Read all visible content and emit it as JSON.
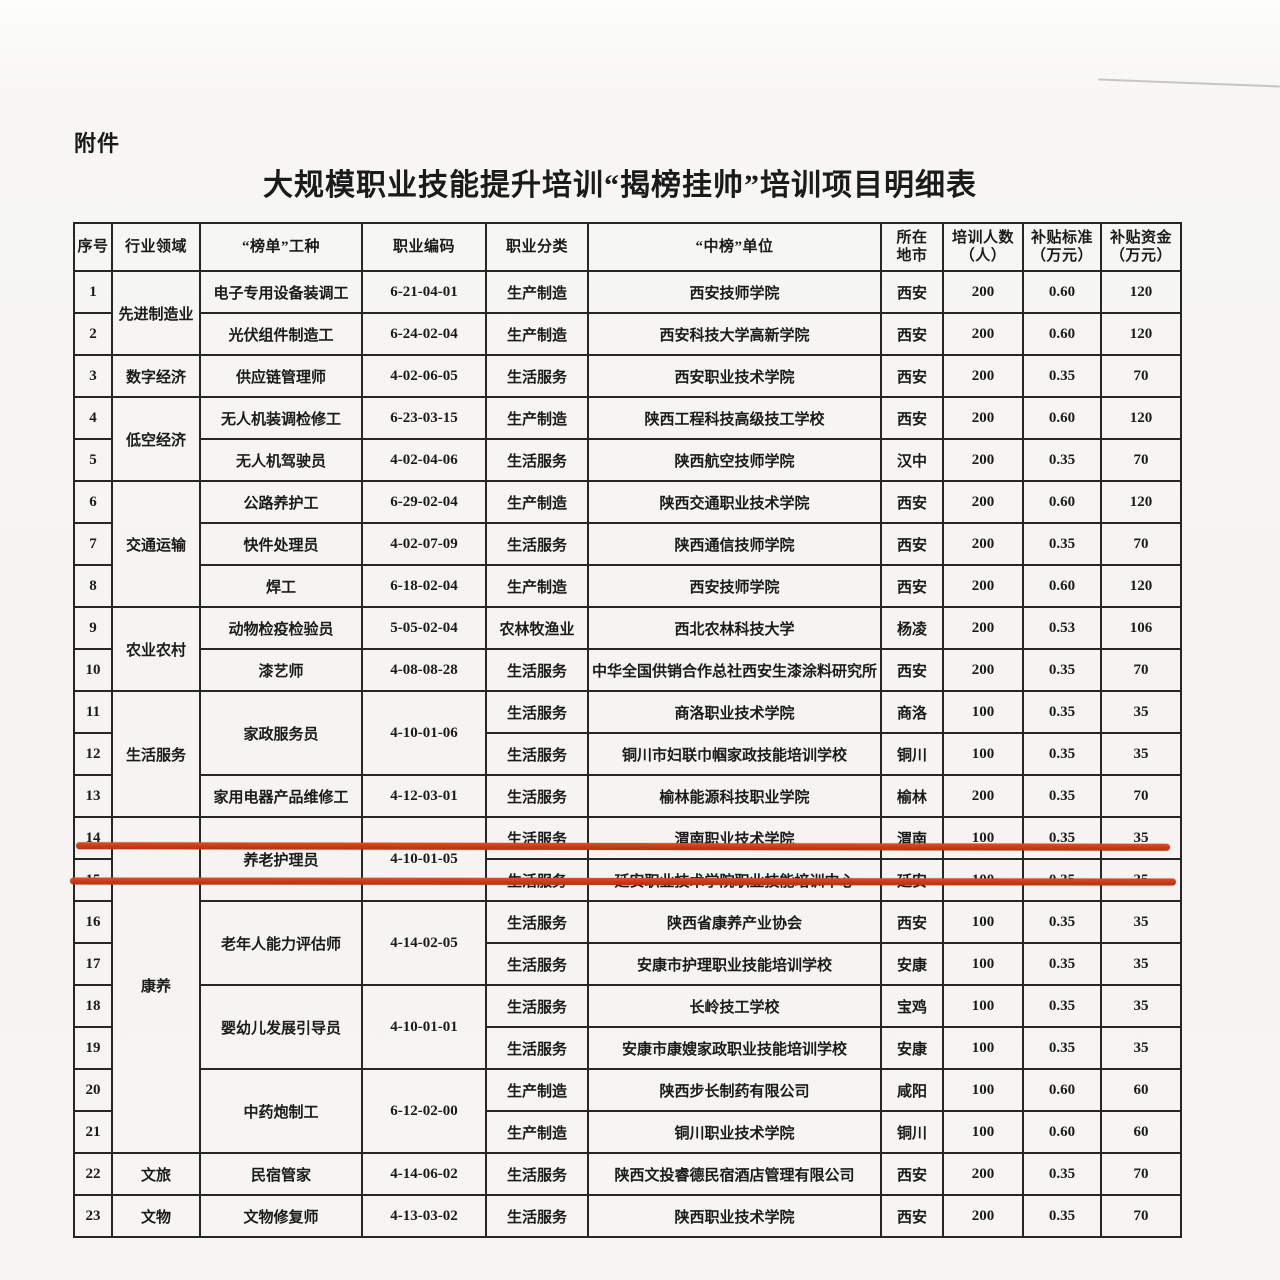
{
  "page": {
    "attachment_label": "附件",
    "title": "大规模职业技能提升培训“揭榜挂帅”培训项目明细表"
  },
  "annotation": {
    "highlight_color": "#c63a18",
    "highlighted_row_no": "14"
  },
  "table": {
    "headers": [
      "序号",
      "行业领域",
      "“榜单”工种",
      "职业编码",
      "职业分类",
      "“中榜”单位",
      "所在\n地市",
      "培训人数\n（人）",
      "补贴标准\n（万元）",
      "补贴资金\n（万元）"
    ],
    "rows": [
      [
        "1",
        {
          "t": "先进制造业",
          "rs": 2
        },
        "电子专用设备装调工",
        "6-21-04-01",
        "生产制造",
        "西安技师学院",
        "西安",
        "200",
        "0.60",
        "120"
      ],
      [
        "2",
        null,
        "光伏组件制造工",
        "6-24-02-04",
        "生产制造",
        "西安科技大学高新学院",
        "西安",
        "200",
        "0.60",
        "120"
      ],
      [
        "3",
        "数字经济",
        "供应链管理师",
        "4-02-06-05",
        "生活服务",
        "西安职业技术学院",
        "西安",
        "200",
        "0.35",
        "70"
      ],
      [
        "4",
        {
          "t": "低空经济",
          "rs": 2
        },
        "无人机装调检修工",
        "6-23-03-15",
        "生产制造",
        "陕西工程科技高级技工学校",
        "西安",
        "200",
        "0.60",
        "120"
      ],
      [
        "5",
        null,
        "无人机驾驶员",
        "4-02-04-06",
        "生活服务",
        "陕西航空技师学院",
        "汉中",
        "200",
        "0.35",
        "70"
      ],
      [
        "6",
        {
          "t": "交通运输",
          "rs": 3
        },
        "公路养护工",
        "6-29-02-04",
        "生产制造",
        "陕西交通职业技术学院",
        "西安",
        "200",
        "0.60",
        "120"
      ],
      [
        "7",
        null,
        "快件处理员",
        "4-02-07-09",
        "生活服务",
        "陕西通信技师学院",
        "西安",
        "200",
        "0.35",
        "70"
      ],
      [
        "8",
        null,
        "焊工",
        "6-18-02-04",
        "生产制造",
        "西安技师学院",
        "西安",
        "200",
        "0.60",
        "120"
      ],
      [
        "9",
        {
          "t": "农业农村",
          "rs": 2
        },
        "动物检疫检验员",
        "5-05-02-04",
        "农林牧渔业",
        "西北农林科技大学",
        "杨凌",
        "200",
        "0.53",
        "106"
      ],
      [
        "10",
        null,
        "漆艺师",
        "4-08-08-28",
        "生活服务",
        "中华全国供销合作总社西安生漆涂料研究所",
        "西安",
        "200",
        "0.35",
        "70"
      ],
      [
        "11",
        {
          "t": "生活服务",
          "rs": 3
        },
        {
          "t": "家政服务员",
          "rs": 2
        },
        {
          "t": "4-10-01-06",
          "rs": 2
        },
        "生活服务",
        "商洛职业技术学院",
        "商洛",
        "100",
        "0.35",
        "35"
      ],
      [
        "12",
        null,
        null,
        null,
        "生活服务",
        "铜川市妇联巾帼家政技能培训学校",
        "铜川",
        "100",
        "0.35",
        "35"
      ],
      [
        "13",
        null,
        "家用电器产品维修工",
        "4-12-03-01",
        "生活服务",
        "榆林能源科技职业学院",
        "榆林",
        "200",
        "0.35",
        "70"
      ],
      [
        "14",
        {
          "t": "康养",
          "rs": 8
        },
        {
          "t": "养老护理员",
          "rs": 2
        },
        {
          "t": "4-10-01-05",
          "rs": 2
        },
        "生活服务",
        "渭南职业技术学院",
        "渭南",
        "100",
        "0.35",
        "35"
      ],
      [
        "15",
        null,
        null,
        null,
        "生活服务",
        "延安职业技术学院职业技能培训中心",
        "延安",
        "100",
        "0.35",
        "35"
      ],
      [
        "16",
        null,
        {
          "t": "老年人能力评估师",
          "rs": 2
        },
        {
          "t": "4-14-02-05",
          "rs": 2
        },
        "生活服务",
        "陕西省康养产业协会",
        "西安",
        "100",
        "0.35",
        "35"
      ],
      [
        "17",
        null,
        null,
        null,
        "生活服务",
        "安康市护理职业技能培训学校",
        "安康",
        "100",
        "0.35",
        "35"
      ],
      [
        "18",
        null,
        {
          "t": "婴幼儿发展引导员",
          "rs": 2
        },
        {
          "t": "4-10-01-01",
          "rs": 2
        },
        "生活服务",
        "长岭技工学校",
        "宝鸡",
        "100",
        "0.35",
        "35"
      ],
      [
        "19",
        null,
        null,
        null,
        "生活服务",
        "安康市康嫂家政职业技能培训学校",
        "安康",
        "100",
        "0.35",
        "35"
      ],
      [
        "20",
        null,
        {
          "t": "中药炮制工",
          "rs": 2
        },
        {
          "t": "6-12-02-00",
          "rs": 2
        },
        "生产制造",
        "陕西步长制药有限公司",
        "咸阳",
        "100",
        "0.60",
        "60"
      ],
      [
        "21",
        null,
        null,
        null,
        "生产制造",
        "铜川职业技术学院",
        "铜川",
        "100",
        "0.60",
        "60"
      ],
      [
        "22",
        "文旅",
        "民宿管家",
        "4-14-06-02",
        "生活服务",
        "陕西文投睿德民宿酒店管理有限公司",
        "西安",
        "200",
        "0.35",
        "70"
      ],
      [
        "23",
        "文物",
        "文物修复师",
        "4-13-03-02",
        "生活服务",
        "陕西职业技术学院",
        "西安",
        "200",
        "0.35",
        "70"
      ]
    ]
  }
}
